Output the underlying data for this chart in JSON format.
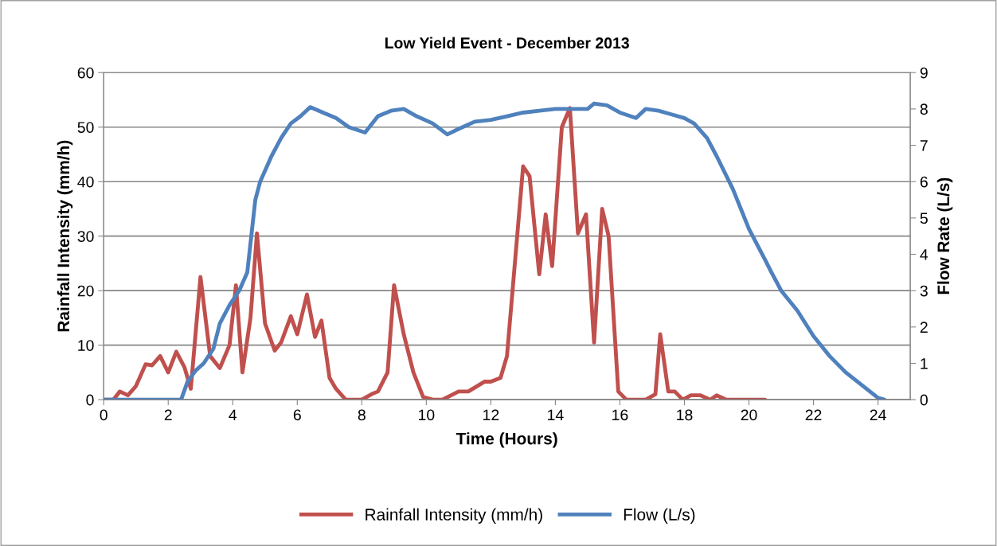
{
  "chart_data": {
    "type": "line",
    "title": "Low Yield Event - December 2013",
    "xlabel": "Time (Hours)",
    "ylabel": "Rainfall Intensity (mm/h)",
    "y2label": "Flow Rate (L/s)",
    "xlim": [
      0,
      25
    ],
    "xticks": [
      0,
      2,
      4,
      6,
      8,
      10,
      12,
      14,
      16,
      18,
      20,
      22,
      24
    ],
    "ylim": [
      0,
      60
    ],
    "yticks": [
      0,
      10,
      20,
      30,
      40,
      50,
      60
    ],
    "y2lim": [
      0,
      9
    ],
    "y2ticks": [
      0,
      1,
      2,
      3,
      4,
      5,
      6,
      7,
      8,
      9
    ],
    "grid": "y",
    "legend": "bottom",
    "marker": "none",
    "line_style": "solid",
    "series": [
      {
        "name": "Rainfall Intensity (mm/h)",
        "color": "#c0504d",
        "axis": "y",
        "x": [
          0,
          0.3,
          0.5,
          0.75,
          1.0,
          1.3,
          1.5,
          1.75,
          2.0,
          2.25,
          2.5,
          2.7,
          3.0,
          3.3,
          3.6,
          3.9,
          4.1,
          4.3,
          4.55,
          4.75,
          5.0,
          5.3,
          5.5,
          5.8,
          6.0,
          6.3,
          6.55,
          6.75,
          7.0,
          7.2,
          7.5,
          7.8,
          8.0,
          8.3,
          8.5,
          8.8,
          9.0,
          9.3,
          9.6,
          9.9,
          10.2,
          10.5,
          11.0,
          11.3,
          11.8,
          12.0,
          12.3,
          12.5,
          13.0,
          13.2,
          13.5,
          13.7,
          13.9,
          14.2,
          14.45,
          14.7,
          14.95,
          15.2,
          15.45,
          15.65,
          15.95,
          16.2,
          16.5,
          16.8,
          17.1,
          17.25,
          17.5,
          17.7,
          17.95,
          18.2,
          18.5,
          18.8,
          19.0,
          19.3,
          20.5
        ],
        "values": [
          0,
          0,
          1.5,
          0.8,
          2.5,
          6.5,
          6.3,
          8,
          5,
          8.8,
          6,
          2,
          22.5,
          8,
          5.8,
          10,
          21,
          5,
          15,
          30.5,
          14,
          9,
          10.5,
          15.3,
          12,
          19.3,
          11.5,
          14.5,
          4,
          2,
          0,
          0,
          0,
          1,
          1.5,
          5,
          21,
          12,
          5,
          0.5,
          0,
          0,
          1.5,
          1.5,
          3.3,
          3.3,
          4,
          8,
          42.8,
          41,
          23,
          34,
          24.5,
          50,
          53.5,
          30.5,
          34,
          10.5,
          35,
          30,
          1.5,
          0,
          0,
          0,
          1,
          12,
          1.5,
          1.5,
          0,
          0.8,
          0.8,
          0,
          0.8,
          0,
          0
        ]
      },
      {
        "name": "Flow (L/s)",
        "color": "#4f81bd",
        "axis": "y2",
        "x": [
          0,
          2.4,
          2.6,
          2.85,
          3.1,
          3.4,
          3.6,
          3.9,
          4.2,
          4.45,
          4.7,
          4.85,
          5.2,
          5.5,
          5.8,
          6.1,
          6.4,
          6.8,
          7.2,
          7.6,
          8.1,
          8.5,
          8.9,
          9.3,
          9.7,
          10.2,
          10.65,
          11.0,
          11.5,
          12.0,
          12.5,
          13.0,
          13.5,
          14.0,
          14.5,
          15.0,
          15.2,
          15.6,
          16.0,
          16.5,
          16.8,
          17.2,
          17.6,
          18.0,
          18.3,
          18.7,
          19.0,
          19.5,
          20.0,
          20.5,
          20.7,
          21.0,
          21.5,
          22.0,
          22.5,
          23.0,
          23.5,
          24.0,
          24.2
        ],
        "values": [
          0,
          0,
          0.5,
          0.8,
          1.0,
          1.4,
          2.1,
          2.6,
          3.0,
          3.5,
          5.5,
          6.0,
          6.7,
          7.2,
          7.6,
          7.8,
          8.05,
          7.9,
          7.75,
          7.5,
          7.35,
          7.8,
          7.95,
          8.0,
          7.8,
          7.6,
          7.3,
          7.45,
          7.65,
          7.7,
          7.8,
          7.9,
          7.95,
          8.0,
          8.0,
          8.0,
          8.15,
          8.1,
          7.9,
          7.75,
          8.0,
          7.95,
          7.85,
          7.75,
          7.6,
          7.2,
          6.7,
          5.8,
          4.7,
          3.85,
          3.5,
          3.0,
          2.45,
          1.75,
          1.2,
          0.75,
          0.4,
          0.05,
          0
        ]
      }
    ]
  }
}
